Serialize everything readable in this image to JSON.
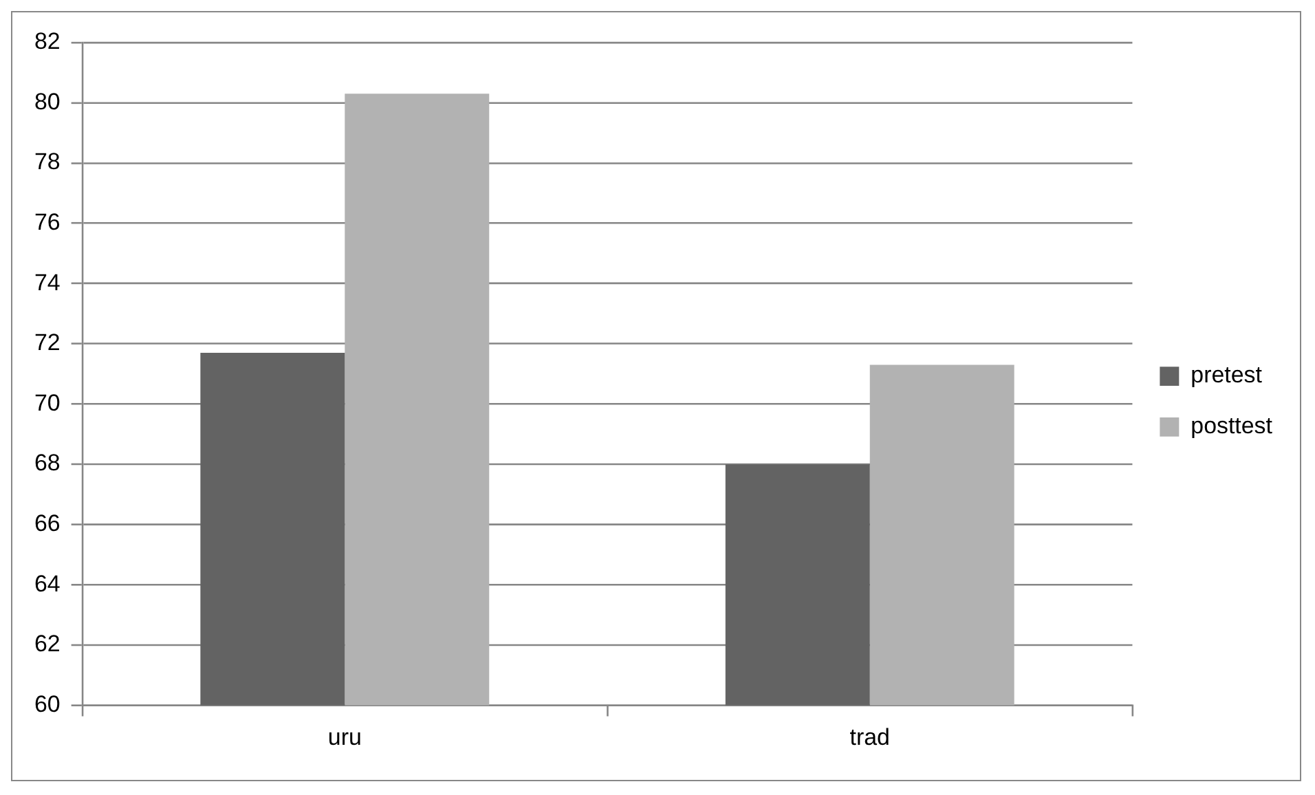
{
  "chart_data": {
    "type": "bar",
    "categories": [
      "uru",
      "trad"
    ],
    "series": [
      {
        "name": "pretest",
        "color": "#636363",
        "values": [
          71.7,
          68.0
        ]
      },
      {
        "name": "posttest",
        "color": "#b2b2b2",
        "values": [
          80.3,
          71.3
        ]
      }
    ],
    "ylim": [
      60,
      82
    ],
    "yticks": [
      60,
      62,
      64,
      66,
      68,
      70,
      72,
      74,
      76,
      78,
      80,
      82
    ],
    "grid": "y",
    "legend": "right"
  }
}
